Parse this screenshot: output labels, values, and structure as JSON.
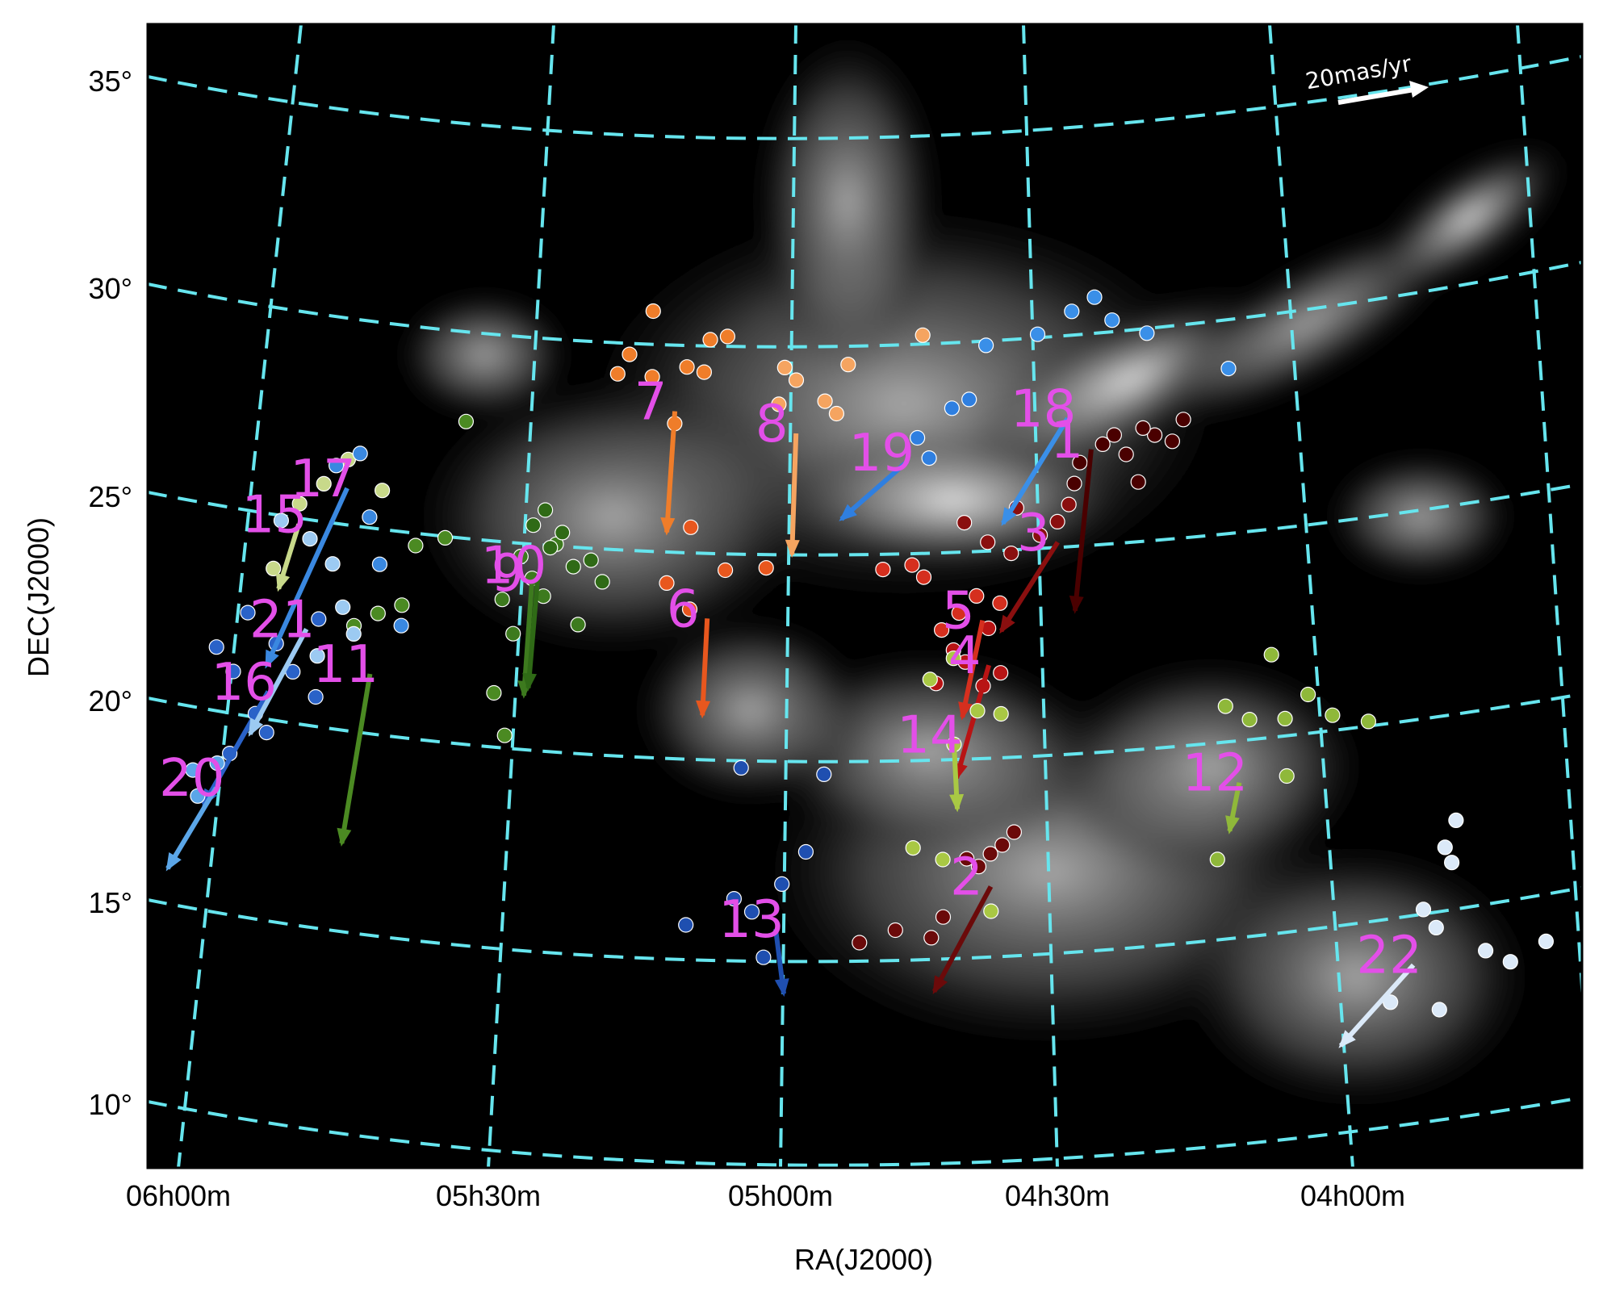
{
  "chart_data": {
    "type": "scatter",
    "title": "",
    "xlabel": "RA(J2000)",
    "ylabel": "DEC(J2000)",
    "x_ticks": [
      "06h00m",
      "05h30m",
      "05h00m",
      "04h30m",
      "04h00m"
    ],
    "y_ticks": [
      "35°",
      "30°",
      "25°",
      "20°",
      "15°",
      "10°"
    ],
    "grid": true,
    "scale_arrow_label": "20mas/yr",
    "colors": {
      "grid": "#66e5ee",
      "label": "#e34fe8",
      "background": "#000000"
    },
    "groups": [
      {
        "id": "1",
        "color": "#4a0000",
        "arrow_ra_h": 4.44,
        "arrow_dec": 26.8,
        "points": [
          [
            4.28,
            27.3
          ],
          [
            4.33,
            27.0
          ],
          [
            4.38,
            26.6
          ],
          [
            4.4,
            27.1
          ],
          [
            4.42,
            26.9
          ],
          [
            4.46,
            26.5
          ],
          [
            4.36,
            25.9
          ],
          [
            4.47,
            26.0
          ],
          [
            4.3,
            26.8
          ],
          [
            4.35,
            27.2
          ]
        ]
      },
      {
        "id": "2",
        "color": "#6b0a0a",
        "arrow_ra_h": 4.62,
        "arrow_dec": 16.3,
        "points": [
          [
            4.6,
            17.3
          ],
          [
            4.62,
            17.1
          ],
          [
            4.64,
            16.8
          ],
          [
            4.66,
            17.0
          ],
          [
            4.58,
            17.6
          ],
          [
            4.7,
            15.6
          ],
          [
            4.72,
            15.1
          ],
          [
            4.78,
            15.3
          ],
          [
            4.84,
            15.0
          ]
        ]
      },
      {
        "id": "3",
        "color": "#8a0f0f",
        "arrow_ra_h": 4.5,
        "arrow_dec": 24.6,
        "points": [
          [
            4.48,
            25.5
          ],
          [
            4.5,
            25.1
          ],
          [
            4.53,
            24.8
          ],
          [
            4.58,
            24.4
          ],
          [
            4.62,
            24.7
          ],
          [
            4.57,
            25.5
          ],
          [
            4.66,
            25.2
          ]
        ]
      },
      {
        "id": "4",
        "color": "#b81414",
        "arrow_ra_h": 4.62,
        "arrow_dec": 21.7,
        "points": [
          [
            4.6,
            21.5
          ],
          [
            4.63,
            21.2
          ],
          [
            4.66,
            21.8
          ],
          [
            4.68,
            22.1
          ],
          [
            4.71,
            21.3
          ],
          [
            4.62,
            22.6
          ]
        ]
      },
      {
        "id": "5",
        "color": "#d52f1e",
        "arrow_ra_h": 4.63,
        "arrow_dec": 22.8,
        "points": [
          [
            4.64,
            23.4
          ],
          [
            4.67,
            23.0
          ],
          [
            4.7,
            22.6
          ],
          [
            4.6,
            23.2
          ],
          [
            4.73,
            23.9
          ],
          [
            4.75,
            24.2
          ],
          [
            4.8,
            24.1
          ]
        ]
      },
      {
        "id": "6",
        "color": "#e8571e",
        "arrow_ra_h": 5.1,
        "arrow_dec": 22.8,
        "points": [
          [
            5.13,
            23.0
          ],
          [
            5.07,
            24.0
          ],
          [
            5.0,
            24.1
          ],
          [
            5.17,
            23.6
          ],
          [
            5.13,
            25.0
          ]
        ]
      },
      {
        "id": "7",
        "color": "#ef7d2a",
        "arrow_ra_h": 5.16,
        "arrow_dec": 27.8,
        "points": [
          [
            5.2,
            30.2
          ],
          [
            5.24,
            29.1
          ],
          [
            5.2,
            28.6
          ],
          [
            5.14,
            28.9
          ],
          [
            5.1,
            29.6
          ],
          [
            5.07,
            29.7
          ],
          [
            5.11,
            28.8
          ],
          [
            5.16,
            27.5
          ],
          [
            5.26,
            28.6
          ]
        ]
      },
      {
        "id": "8",
        "color": "#f5a460",
        "arrow_ra_h": 4.95,
        "arrow_dec": 27.4,
        "points": [
          [
            4.97,
            29.0
          ],
          [
            4.95,
            28.7
          ],
          [
            4.9,
            28.2
          ],
          [
            4.88,
            27.9
          ],
          [
            4.86,
            29.1
          ],
          [
            4.73,
            29.8
          ],
          [
            4.98,
            28.1
          ]
        ]
      },
      {
        "id": "9",
        "color": "#3d7a1e",
        "arrow_ra_h": 5.4,
        "arrow_dec": 23.3,
        "points": [
          [
            5.42,
            23.9
          ],
          [
            5.4,
            23.4
          ],
          [
            5.38,
            23.0
          ],
          [
            5.45,
            22.8
          ],
          [
            5.36,
            24.3
          ],
          [
            5.43,
            22.0
          ],
          [
            5.32,
            22.4
          ]
        ]
      },
      {
        "id": "10",
        "color": "#2f6a16",
        "arrow_ra_h": 5.39,
        "arrow_dec": 23.5,
        "points": [
          [
            5.37,
            24.2
          ],
          [
            5.35,
            24.6
          ],
          [
            5.33,
            23.8
          ],
          [
            5.4,
            24.7
          ],
          [
            5.3,
            24.0
          ],
          [
            5.28,
            23.5
          ],
          [
            5.38,
            25.1
          ]
        ]
      },
      {
        "id": "11",
        "color": "#4b8a22",
        "arrow_ra_h": 5.67,
        "arrow_dec": 20.5,
        "points": [
          [
            5.7,
            21.6
          ],
          [
            5.66,
            22.0
          ],
          [
            5.62,
            22.3
          ],
          [
            5.6,
            23.8
          ],
          [
            5.55,
            24.1
          ],
          [
            5.52,
            27.0
          ],
          [
            5.46,
            20.5
          ],
          [
            5.44,
            19.5
          ]
        ]
      },
      {
        "id": "12",
        "color": "#8fb83a",
        "arrow_ra_h": 4.2,
        "arrow_dec": 18.3,
        "points": [
          [
            4.22,
            20.2
          ],
          [
            4.18,
            19.8
          ],
          [
            4.12,
            19.7
          ],
          [
            4.08,
            20.2
          ],
          [
            4.04,
            19.6
          ],
          [
            3.98,
            19.3
          ],
          [
            4.14,
            21.3
          ],
          [
            4.12,
            18.3
          ],
          [
            4.24,
            16.5
          ]
        ]
      },
      {
        "id": "13",
        "color": "#1f4fb0",
        "arrow_ra_h": 4.98,
        "arrow_dec": 15.3,
        "points": [
          [
            5.02,
            15.7
          ],
          [
            5.05,
            16.0
          ],
          [
            4.97,
            16.4
          ],
          [
            4.93,
            17.2
          ],
          [
            4.9,
            19.1
          ],
          [
            5.04,
            19.2
          ],
          [
            5.13,
            15.3
          ],
          [
            5.0,
            14.6
          ]
        ]
      },
      {
        "id": "14",
        "color": "#a9c844",
        "arrow_ra_h": 4.68,
        "arrow_dec": 19.8,
        "points": [
          [
            4.68,
            21.9
          ],
          [
            4.72,
            21.4
          ],
          [
            4.64,
            20.6
          ],
          [
            4.6,
            20.5
          ],
          [
            4.68,
            19.8
          ],
          [
            4.75,
            17.3
          ],
          [
            4.7,
            17.0
          ],
          [
            4.62,
            15.7
          ]
        ]
      },
      {
        "id": "15",
        "color": "#c8d98a",
        "arrow_ra_h": 5.8,
        "arrow_dec": 23.8,
        "points": [
          [
            5.8,
            24.3
          ],
          [
            5.76,
            24.9
          ],
          [
            5.72,
            25.6
          ],
          [
            5.66,
            25.0
          ],
          [
            5.84,
            22.6
          ]
        ]
      },
      {
        "id": "16",
        "color": "#2a62c8",
        "arrow_ra_h": 5.84,
        "arrow_dec": 19.6,
        "points": [
          [
            5.93,
            20.4
          ],
          [
            5.9,
            19.9
          ],
          [
            5.86,
            19.0
          ],
          [
            5.83,
            20.8
          ],
          [
            5.8,
            20.2
          ],
          [
            5.76,
            19.7
          ],
          [
            5.88,
            21.4
          ],
          [
            5.84,
            18.6
          ],
          [
            5.9,
            17.9
          ],
          [
            5.76,
            21.6
          ]
        ]
      },
      {
        "id": "17",
        "color": "#3a88e0",
        "arrow_ra_h": 5.72,
        "arrow_dec": 24.9,
        "points": [
          [
            5.74,
            25.4
          ],
          [
            5.7,
            25.8
          ],
          [
            5.68,
            24.3
          ],
          [
            5.66,
            23.2
          ],
          [
            5.62,
            21.8
          ]
        ]
      },
      {
        "id": "18",
        "color": "#3a8fe8",
        "arrow_ra_h": 4.48,
        "arrow_dec": 27.6,
        "points": [
          [
            4.47,
            30.2
          ],
          [
            4.43,
            30.5
          ],
          [
            4.4,
            29.9
          ],
          [
            4.34,
            29.5
          ],
          [
            4.53,
            29.7
          ],
          [
            4.62,
            29.5
          ],
          [
            4.2,
            28.4
          ]
        ]
      },
      {
        "id": "19",
        "color": "#2f7fe0",
        "arrow_ra_h": 4.76,
        "arrow_dec": 26.7,
        "points": [
          [
            4.72,
            26.8
          ],
          [
            4.74,
            27.3
          ],
          [
            4.68,
            28.0
          ],
          [
            4.65,
            28.2
          ]
        ]
      },
      {
        "id": "20",
        "color": "#5ba6e8",
        "arrow_ra_h": 5.92,
        "arrow_dec": 17.0,
        "points": [
          [
            5.96,
            17.3
          ],
          [
            5.92,
            17.6
          ],
          [
            5.95,
            16.7
          ]
        ]
      },
      {
        "id": "21",
        "color": "#9ccaf2",
        "arrow_ra_h": 5.78,
        "arrow_dec": 21.3,
        "points": [
          [
            5.83,
            23.8
          ],
          [
            5.78,
            23.5
          ],
          [
            5.74,
            23.0
          ],
          [
            5.72,
            22.0
          ],
          [
            5.7,
            21.4
          ],
          [
            5.76,
            20.7
          ]
        ]
      },
      {
        "id": "22",
        "color": "#dbe9f8",
        "arrow_ra_h": 3.92,
        "arrow_dec": 13.2,
        "points": [
          [
            3.9,
            14.5
          ],
          [
            3.88,
            14.0
          ],
          [
            3.86,
            15.9
          ],
          [
            3.84,
            16.5
          ],
          [
            3.8,
            13.2
          ],
          [
            3.76,
            12.8
          ],
          [
            3.7,
            13.1
          ],
          [
            3.88,
            12.0
          ],
          [
            3.96,
            12.4
          ],
          [
            3.85,
            15.5
          ]
        ]
      }
    ]
  }
}
